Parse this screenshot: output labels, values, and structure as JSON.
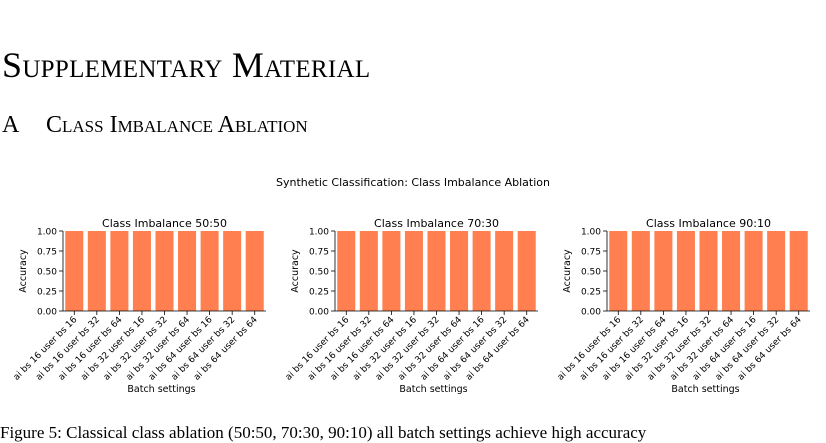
{
  "section": {
    "title": "Supplementary Material"
  },
  "subsection": {
    "number": "A",
    "title": "Class Imbalance Ablation"
  },
  "figure": {
    "suptitle": "Synthetic Classification: Class Imbalance Ablation",
    "bar_color": "#ff7f50"
  },
  "caption": "Figure 5: Classical class ablation (50:50, 70:30, 90:10) all batch settings achieve high accuracy",
  "chart_data": [
    {
      "type": "bar",
      "title": "Class Imbalance 50:50",
      "xlabel": "Batch settings",
      "ylabel": "Accuracy",
      "ylim": [
        0,
        1
      ],
      "yticks": [
        "0.00",
        "0.25",
        "0.50",
        "0.75",
        "1.00"
      ],
      "categories": [
        "ai bs 16 user bs 16",
        "ai bs 16 user bs 32",
        "ai bs 16 user bs 64",
        "ai bs 32 user bs 16",
        "ai bs 32 user bs 32",
        "ai bs 32 user bs 64",
        "ai bs 64 user bs 16",
        "ai bs 64 user bs 32",
        "ai bs 64 user bs 64"
      ],
      "values": [
        1.0,
        1.0,
        1.0,
        1.0,
        1.0,
        1.0,
        1.0,
        1.0,
        1.0
      ]
    },
    {
      "type": "bar",
      "title": "Class Imbalance 70:30",
      "xlabel": "Batch settings",
      "ylabel": "Accuracy",
      "ylim": [
        0,
        1
      ],
      "yticks": [
        "0.00",
        "0.25",
        "0.50",
        "0.75",
        "1.00"
      ],
      "categories": [
        "ai bs 16 user bs 16",
        "ai bs 16 user bs 32",
        "ai bs 16 user bs 64",
        "ai bs 32 user bs 16",
        "ai bs 32 user bs 32",
        "ai bs 32 user bs 64",
        "ai bs 64 user bs 16",
        "ai bs 64 user bs 32",
        "ai bs 64 user bs 64"
      ],
      "values": [
        1.0,
        1.0,
        1.0,
        1.0,
        1.0,
        1.0,
        1.0,
        1.0,
        1.0
      ]
    },
    {
      "type": "bar",
      "title": "Class Imbalance 90:10",
      "xlabel": "Batch settings",
      "ylabel": "Accuracy",
      "ylim": [
        0,
        1
      ],
      "yticks": [
        "0.00",
        "0.25",
        "0.50",
        "0.75",
        "1.00"
      ],
      "categories": [
        "ai bs 16 user bs 16",
        "ai bs 16 user bs 32",
        "ai bs 16 user bs 64",
        "ai bs 32 user bs 16",
        "ai bs 32 user bs 32",
        "ai bs 32 user bs 64",
        "ai bs 64 user bs 16",
        "ai bs 64 user bs 32",
        "ai bs 64 user bs 64"
      ],
      "values": [
        1.0,
        1.0,
        1.0,
        1.0,
        1.0,
        1.0,
        1.0,
        1.0,
        1.0
      ]
    }
  ]
}
